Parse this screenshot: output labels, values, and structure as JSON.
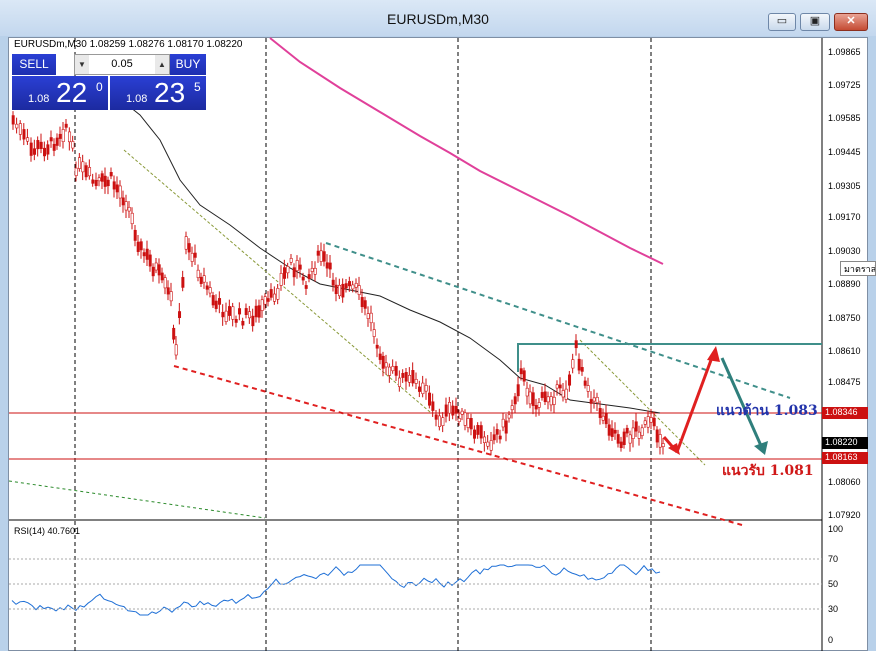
{
  "window": {
    "title": "EURUSDm,M30",
    "minimize_label": "▭",
    "maximize_label": "▣",
    "close_label": "✕"
  },
  "chart": {
    "ohlc_header": "EURUSDm,M30  1.08259 1.08276 1.08170 1.08220",
    "price_labels": [
      "1.09865",
      "1.09725",
      "1.09585",
      "1.09445",
      "1.09305",
      "1.09170",
      "1.09030",
      "1.08890",
      "1.08750",
      "1.08610",
      "1.08475",
      "1.08346",
      "1.08220",
      "1.08163",
      "1.08060",
      "1.07920"
    ],
    "resistance_price": "1.08346",
    "current_price": "1.08220",
    "support_price": "1.08163",
    "resistance_note": "แนวต้าน 1.083",
    "support_note": "แนวรับ 1.081",
    "tooltip_text": "มาตราส่วน",
    "colors": {
      "candle": "#cc1111",
      "resistance_line": "#cc1111",
      "channel_top": "#3f8f8a",
      "channel_bottom": "#e02020",
      "ma_long": "#e0409a",
      "rsi": "#1e6fd6",
      "note_resistance": "#2233aa",
      "note_support": "#d01818"
    }
  },
  "trade_panel": {
    "sell_label": "SELL",
    "buy_label": "BUY",
    "lot": "0.05",
    "sell_prefix": "1.08",
    "sell_big": "22",
    "sell_sup": "0",
    "buy_prefix": "1.08",
    "buy_big": "23",
    "buy_sup": "5"
  },
  "rsi": {
    "label": "RSI(14) 40.7601",
    "levels": [
      "100",
      "70",
      "50",
      "30",
      "0"
    ]
  }
}
